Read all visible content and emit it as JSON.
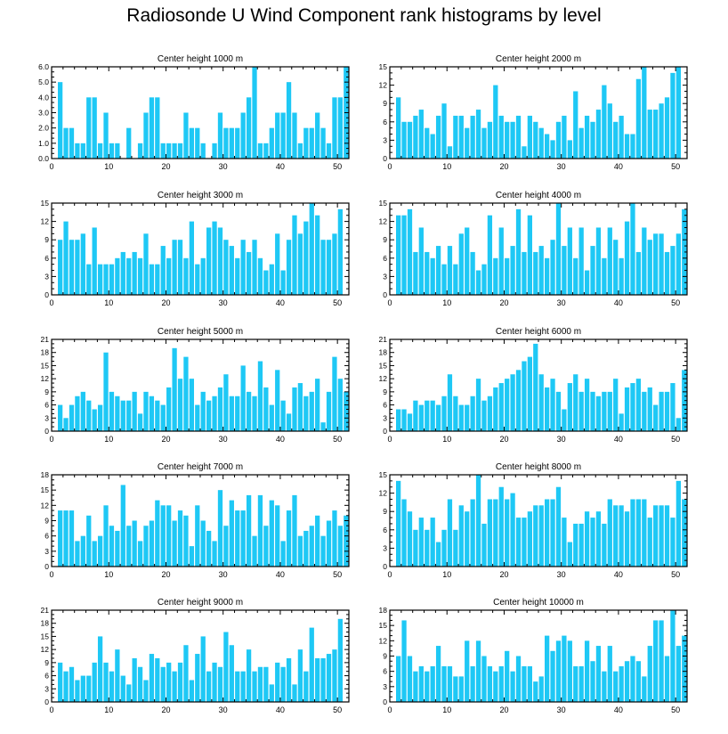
{
  "page": {
    "title": "Radiosonde U Wind Component rank histograms by level"
  },
  "style": {
    "bar_color": "#1ec8f5",
    "axis_color": "#000000",
    "background": "#ffffff"
  },
  "chart_data": [
    {
      "type": "bar",
      "title": "Center height 1000 m",
      "x": [
        0,
        1,
        2,
        3,
        4,
        5,
        6,
        7,
        8,
        9,
        10,
        11,
        12,
        13,
        14,
        15,
        16,
        17,
        18,
        19,
        20,
        21,
        22,
        23,
        24,
        25,
        26,
        27,
        28,
        29,
        30,
        31,
        32,
        33,
        34,
        35,
        36,
        37,
        38,
        39,
        40,
        41,
        42,
        43,
        44,
        45,
        46,
        47,
        48,
        49,
        50,
        51
      ],
      "values": [
        0,
        5,
        2,
        2,
        1,
        1,
        4,
        4,
        1,
        3,
        1,
        1,
        0,
        2,
        0,
        1,
        3,
        4,
        4,
        1,
        1,
        1,
        1,
        3,
        2,
        2,
        1,
        0,
        1,
        3,
        2,
        2,
        2,
        3,
        4,
        6,
        1,
        1,
        2,
        3,
        3,
        5,
        3,
        1,
        2,
        2,
        3,
        2,
        1,
        4,
        4,
        6
      ],
      "xlim": [
        0,
        52
      ],
      "ylim": [
        0,
        6
      ],
      "yticks": [
        0,
        1,
        2,
        3,
        4,
        5,
        6
      ],
      "yticklabels": [
        "0.0",
        "1.0",
        "2.0",
        "3.0",
        "4.0",
        "5.0",
        "6.0"
      ],
      "xticks": [
        0,
        10,
        20,
        30,
        40,
        50
      ],
      "xticklabels": [
        "0",
        "10",
        "20",
        "30",
        "40",
        "50"
      ],
      "xlabel": "",
      "ylabel": ""
    },
    {
      "type": "bar",
      "title": "Center height 2000 m",
      "x": [
        0,
        1,
        2,
        3,
        4,
        5,
        6,
        7,
        8,
        9,
        10,
        11,
        12,
        13,
        14,
        15,
        16,
        17,
        18,
        19,
        20,
        21,
        22,
        23,
        24,
        25,
        26,
        27,
        28,
        29,
        30,
        31,
        32,
        33,
        34,
        35,
        36,
        37,
        38,
        39,
        40,
        41,
        42,
        43,
        44,
        45,
        46,
        47,
        48,
        49,
        50,
        51
      ],
      "values": [
        0,
        10,
        6,
        6,
        7,
        8,
        5,
        4,
        7,
        9,
        2,
        7,
        7,
        5,
        7,
        8,
        5,
        6,
        12,
        7,
        6,
        6,
        7,
        2,
        7,
        6,
        5,
        4,
        3,
        6,
        7,
        3,
        11,
        5,
        7,
        6,
        8,
        12,
        9,
        6,
        7,
        4,
        4,
        13,
        15,
        8,
        8,
        9,
        10,
        14,
        15,
        0
      ],
      "xlim": [
        0,
        52
      ],
      "ylim": [
        0,
        15
      ],
      "yticks": [
        0,
        3,
        6,
        9,
        12,
        15
      ],
      "yticklabels": [
        "0",
        "3",
        "6",
        "9",
        "12",
        "15"
      ],
      "xticks": [
        0,
        10,
        20,
        30,
        40,
        50
      ],
      "xticklabels": [
        "0",
        "10",
        "20",
        "30",
        "40",
        "50"
      ],
      "xlabel": "",
      "ylabel": ""
    },
    {
      "type": "bar",
      "title": "Center height 3000 m",
      "x": [
        0,
        1,
        2,
        3,
        4,
        5,
        6,
        7,
        8,
        9,
        10,
        11,
        12,
        13,
        14,
        15,
        16,
        17,
        18,
        19,
        20,
        21,
        22,
        23,
        24,
        25,
        26,
        27,
        28,
        29,
        30,
        31,
        32,
        33,
        34,
        35,
        36,
        37,
        38,
        39,
        40,
        41,
        42,
        43,
        44,
        45,
        46,
        47,
        48,
        49,
        50,
        51
      ],
      "values": [
        0,
        9,
        12,
        9,
        9,
        10,
        5,
        11,
        5,
        5,
        5,
        6,
        7,
        6,
        7,
        6,
        10,
        5,
        5,
        8,
        6,
        9,
        9,
        6,
        12,
        5,
        6,
        11,
        12,
        11,
        9,
        8,
        6,
        9,
        7,
        9,
        6,
        4,
        5,
        10,
        4,
        9,
        13,
        10,
        12,
        15,
        13,
        9,
        9,
        10,
        14,
        0
      ],
      "xlim": [
        0,
        52
      ],
      "ylim": [
        0,
        15
      ],
      "yticks": [
        0,
        3,
        6,
        9,
        12,
        15
      ],
      "yticklabels": [
        "0",
        "3",
        "6",
        "9",
        "12",
        "15"
      ],
      "xticks": [
        0,
        10,
        20,
        30,
        40,
        50
      ],
      "xticklabels": [
        "0",
        "10",
        "20",
        "30",
        "40",
        "50"
      ],
      "xlabel": "",
      "ylabel": ""
    },
    {
      "type": "bar",
      "title": "Center height 4000 m",
      "x": [
        0,
        1,
        2,
        3,
        4,
        5,
        6,
        7,
        8,
        9,
        10,
        11,
        12,
        13,
        14,
        15,
        16,
        17,
        18,
        19,
        20,
        21,
        22,
        23,
        24,
        25,
        26,
        27,
        28,
        29,
        30,
        31,
        32,
        33,
        34,
        35,
        36,
        37,
        38,
        39,
        40,
        41,
        42,
        43,
        44,
        45,
        46,
        47,
        48,
        49,
        50,
        51
      ],
      "values": [
        0,
        13,
        13,
        14,
        7,
        11,
        7,
        6,
        8,
        5,
        8,
        5,
        10,
        11,
        7,
        4,
        5,
        13,
        6,
        11,
        6,
        8,
        14,
        7,
        13,
        7,
        8,
        6,
        9,
        15,
        8,
        11,
        6,
        11,
        4,
        8,
        11,
        6,
        11,
        9,
        6,
        12,
        15,
        7,
        11,
        9,
        10,
        10,
        7,
        8,
        10,
        14
      ],
      "xlim": [
        0,
        52
      ],
      "ylim": [
        0,
        15
      ],
      "yticks": [
        0,
        3,
        6,
        9,
        12,
        15
      ],
      "yticklabels": [
        "0",
        "3",
        "6",
        "9",
        "12",
        "15"
      ],
      "xticks": [
        0,
        10,
        20,
        30,
        40,
        50
      ],
      "xticklabels": [
        "0",
        "10",
        "20",
        "30",
        "40",
        "50"
      ],
      "xlabel": "",
      "ylabel": ""
    },
    {
      "type": "bar",
      "title": "Center height 5000 m",
      "x": [
        0,
        1,
        2,
        3,
        4,
        5,
        6,
        7,
        8,
        9,
        10,
        11,
        12,
        13,
        14,
        15,
        16,
        17,
        18,
        19,
        20,
        21,
        22,
        23,
        24,
        25,
        26,
        27,
        28,
        29,
        30,
        31,
        32,
        33,
        34,
        35,
        36,
        37,
        38,
        39,
        40,
        41,
        42,
        43,
        44,
        45,
        46,
        47,
        48,
        49,
        50,
        51
      ],
      "values": [
        0,
        6,
        3,
        6,
        8,
        9,
        7,
        5,
        6,
        18,
        9,
        8,
        7,
        7,
        9,
        4,
        9,
        8,
        7,
        6,
        10,
        19,
        12,
        17,
        12,
        6,
        9,
        7,
        8,
        10,
        13,
        8,
        8,
        15,
        9,
        8,
        16,
        10,
        6,
        14,
        7,
        4,
        10,
        11,
        8,
        9,
        12,
        2,
        9,
        17,
        12,
        9
      ],
      "xlim": [
        0,
        52
      ],
      "ylim": [
        0,
        21
      ],
      "yticks": [
        0,
        3,
        6,
        9,
        12,
        15,
        18,
        21
      ],
      "yticklabels": [
        "0",
        "3",
        "6",
        "9",
        "12",
        "15",
        "18",
        "21"
      ],
      "xticks": [
        0,
        10,
        20,
        30,
        40,
        50
      ],
      "xticklabels": [
        "0",
        "10",
        "20",
        "30",
        "40",
        "50"
      ],
      "xlabel": "",
      "ylabel": ""
    },
    {
      "type": "bar",
      "title": "Center height 6000 m",
      "x": [
        0,
        1,
        2,
        3,
        4,
        5,
        6,
        7,
        8,
        9,
        10,
        11,
        12,
        13,
        14,
        15,
        16,
        17,
        18,
        19,
        20,
        21,
        22,
        23,
        24,
        25,
        26,
        27,
        28,
        29,
        30,
        31,
        32,
        33,
        34,
        35,
        36,
        37,
        38,
        39,
        40,
        41,
        42,
        43,
        44,
        45,
        46,
        47,
        48,
        49,
        50,
        51
      ],
      "values": [
        0,
        5,
        5,
        4,
        7,
        6,
        7,
        7,
        6,
        8,
        13,
        8,
        6,
        6,
        8,
        12,
        7,
        8,
        10,
        11,
        12,
        13,
        14,
        16,
        17,
        20,
        13,
        10,
        12,
        9,
        5,
        11,
        13,
        9,
        12,
        9,
        8,
        9,
        9,
        12,
        4,
        10,
        11,
        12,
        9,
        10,
        6,
        9,
        9,
        11,
        3,
        14
      ],
      "xlim": [
        0,
        52
      ],
      "ylim": [
        0,
        21
      ],
      "yticks": [
        0,
        3,
        6,
        9,
        12,
        15,
        18,
        21
      ],
      "yticklabels": [
        "0",
        "3",
        "6",
        "9",
        "12",
        "15",
        "18",
        "21"
      ],
      "xticks": [
        0,
        10,
        20,
        30,
        40,
        50
      ],
      "xticklabels": [
        "0",
        "10",
        "20",
        "30",
        "40",
        "50"
      ],
      "xlabel": "",
      "ylabel": ""
    },
    {
      "type": "bar",
      "title": "Center height 7000 m",
      "x": [
        0,
        1,
        2,
        3,
        4,
        5,
        6,
        7,
        8,
        9,
        10,
        11,
        12,
        13,
        14,
        15,
        16,
        17,
        18,
        19,
        20,
        21,
        22,
        23,
        24,
        25,
        26,
        27,
        28,
        29,
        30,
        31,
        32,
        33,
        34,
        35,
        36,
        37,
        38,
        39,
        40,
        41,
        42,
        43,
        44,
        45,
        46,
        47,
        48,
        49,
        50,
        51
      ],
      "values": [
        0,
        11,
        11,
        11,
        5,
        6,
        10,
        5,
        6,
        12,
        8,
        7,
        16,
        8,
        9,
        5,
        8,
        9,
        13,
        12,
        12,
        9,
        11,
        10,
        4,
        12,
        9,
        7,
        5,
        15,
        8,
        13,
        11,
        11,
        14,
        6,
        14,
        8,
        13,
        12,
        5,
        11,
        14,
        6,
        7,
        8,
        10,
        6,
        9,
        11,
        8,
        10
      ],
      "xlim": [
        0,
        52
      ],
      "ylim": [
        0,
        18
      ],
      "yticks": [
        0,
        3,
        6,
        9,
        12,
        15,
        18
      ],
      "yticklabels": [
        "0",
        "3",
        "6",
        "9",
        "12",
        "15",
        "18"
      ],
      "xticks": [
        0,
        10,
        20,
        30,
        40,
        50
      ],
      "xticklabels": [
        "0",
        "10",
        "20",
        "30",
        "40",
        "50"
      ],
      "xlabel": "",
      "ylabel": ""
    },
    {
      "type": "bar",
      "title": "Center height 8000 m",
      "x": [
        0,
        1,
        2,
        3,
        4,
        5,
        6,
        7,
        8,
        9,
        10,
        11,
        12,
        13,
        14,
        15,
        16,
        17,
        18,
        19,
        20,
        21,
        22,
        23,
        24,
        25,
        26,
        27,
        28,
        29,
        30,
        31,
        32,
        33,
        34,
        35,
        36,
        37,
        38,
        39,
        40,
        41,
        42,
        43,
        44,
        45,
        46,
        47,
        48,
        49,
        50,
        51
      ],
      "values": [
        0,
        14,
        11,
        9,
        6,
        8,
        6,
        8,
        4,
        6,
        11,
        6,
        10,
        9,
        11,
        15,
        7,
        11,
        11,
        13,
        11,
        12,
        8,
        8,
        9,
        10,
        10,
        11,
        11,
        13,
        8,
        4,
        7,
        7,
        9,
        8,
        9,
        7,
        11,
        10,
        10,
        9,
        11,
        11,
        11,
        8,
        10,
        10,
        10,
        8,
        14,
        11
      ],
      "xlim": [
        0,
        52
      ],
      "ylim": [
        0,
        15
      ],
      "yticks": [
        0,
        3,
        6,
        9,
        12,
        15
      ],
      "yticklabels": [
        "0",
        "3",
        "6",
        "9",
        "12",
        "15"
      ],
      "xticks": [
        0,
        10,
        20,
        30,
        40,
        50
      ],
      "xticklabels": [
        "0",
        "10",
        "20",
        "30",
        "40",
        "50"
      ],
      "xlabel": "",
      "ylabel": ""
    },
    {
      "type": "bar",
      "title": "Center height 9000 m",
      "x": [
        0,
        1,
        2,
        3,
        4,
        5,
        6,
        7,
        8,
        9,
        10,
        11,
        12,
        13,
        14,
        15,
        16,
        17,
        18,
        19,
        20,
        21,
        22,
        23,
        24,
        25,
        26,
        27,
        28,
        29,
        30,
        31,
        32,
        33,
        34,
        35,
        36,
        37,
        38,
        39,
        40,
        41,
        42,
        43,
        44,
        45,
        46,
        47,
        48,
        49,
        50,
        51
      ],
      "values": [
        0,
        9,
        7,
        8,
        5,
        6,
        6,
        9,
        15,
        9,
        7,
        12,
        6,
        4,
        10,
        8,
        5,
        11,
        10,
        8,
        9,
        7,
        9,
        13,
        5,
        11,
        15,
        7,
        9,
        8,
        16,
        13,
        7,
        7,
        12,
        7,
        8,
        8,
        4,
        9,
        8,
        10,
        4,
        12,
        7,
        17,
        10,
        10,
        11,
        12,
        19,
        0
      ],
      "xlim": [
        0,
        52
      ],
      "ylim": [
        0,
        21
      ],
      "yticks": [
        0,
        3,
        6,
        9,
        12,
        15,
        18,
        21
      ],
      "yticklabels": [
        "0",
        "3",
        "6",
        "9",
        "12",
        "15",
        "18",
        "21"
      ],
      "xticks": [
        0,
        10,
        20,
        30,
        40,
        50
      ],
      "xticklabels": [
        "0",
        "10",
        "20",
        "30",
        "40",
        "50"
      ],
      "xlabel": "",
      "ylabel": ""
    },
    {
      "type": "bar",
      "title": "Center height 10000 m",
      "x": [
        0,
        1,
        2,
        3,
        4,
        5,
        6,
        7,
        8,
        9,
        10,
        11,
        12,
        13,
        14,
        15,
        16,
        17,
        18,
        19,
        20,
        21,
        22,
        23,
        24,
        25,
        26,
        27,
        28,
        29,
        30,
        31,
        32,
        33,
        34,
        35,
        36,
        37,
        38,
        39,
        40,
        41,
        42,
        43,
        44,
        45,
        46,
        47,
        48,
        49,
        50,
        51
      ],
      "values": [
        0,
        9,
        16,
        9,
        6,
        7,
        6,
        7,
        11,
        7,
        7,
        5,
        5,
        12,
        7,
        12,
        9,
        7,
        6,
        7,
        10,
        6,
        9,
        7,
        7,
        4,
        5,
        13,
        10,
        12,
        13,
        12,
        7,
        7,
        12,
        8,
        11,
        6,
        11,
        6,
        7,
        8,
        9,
        8,
        5,
        11,
        16,
        16,
        9,
        18,
        11,
        13
      ],
      "xlim": [
        0,
        52
      ],
      "ylim": [
        0,
        18
      ],
      "yticks": [
        0,
        3,
        6,
        9,
        12,
        15,
        18
      ],
      "yticklabels": [
        "0",
        "3",
        "6",
        "9",
        "12",
        "15",
        "18"
      ],
      "xticks": [
        0,
        10,
        20,
        30,
        40,
        50
      ],
      "xticklabels": [
        "0",
        "10",
        "20",
        "30",
        "40",
        "50"
      ],
      "xlabel": "",
      "ylabel": ""
    }
  ]
}
